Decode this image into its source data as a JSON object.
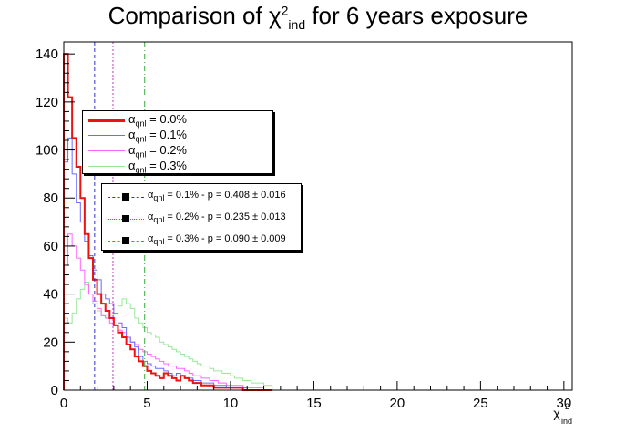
{
  "title": {
    "prefix": "Comparison of ",
    "sym": "χ",
    "sup": "2",
    "sub": "ind",
    "suffix": " for 6 years exposure"
  },
  "legend1": [
    {
      "sym": "α",
      "sub": "qnl",
      "text": " = 0.0%",
      "color": "#ee1111"
    },
    {
      "sym": "α",
      "sub": "qnl",
      "text": " = 0.1%",
      "color": "#6b6bff"
    },
    {
      "sym": "α",
      "sub": "qnl",
      "text": " = 0.2%",
      "color": "#ff66ff"
    },
    {
      "sym": "α",
      "sub": "qnl",
      "text": " = 0.3%",
      "color": "#99e699"
    }
  ],
  "legend2": [
    {
      "sym": "α",
      "sub": "qnl",
      "text": " = 0.1% - p = 0.408 ± 0.016",
      "color": "#3333cc"
    },
    {
      "sym": "α",
      "sub": "qnl",
      "text": " = 0.2% - p = 0.235 ± 0.013",
      "color": "#cc33cc"
    },
    {
      "sym": "α",
      "sub": "qnl",
      "text": " = 0.3% - p = 0.090 ± 0.009",
      "color": "#33aa33"
    }
  ],
  "chart_data": {
    "type": "histogram",
    "title": "Comparison of χ²ind for 6 years exposure",
    "xlabel": "χ²ind",
    "ylabel": "",
    "xlim": [
      0,
      30.5
    ],
    "ylim": [
      0,
      145
    ],
    "xticks": [
      0,
      5,
      10,
      15,
      20,
      25,
      30
    ],
    "yticks": [
      0,
      20,
      40,
      60,
      80,
      100,
      120,
      140
    ],
    "bin_width": 0.25,
    "series": [
      {
        "name": "αqnl = 0.0%",
        "color": "#ee1111",
        "values": [
          140,
          122,
          105,
          93,
          80,
          65,
          55,
          46,
          40,
          36,
          33,
          30,
          27,
          24,
          22,
          19,
          17,
          14,
          12,
          10,
          8,
          7,
          6,
          5,
          7,
          6,
          5,
          4,
          6,
          5,
          4,
          3,
          3,
          2,
          2,
          2,
          1,
          1,
          1,
          1,
          1,
          1,
          1,
          0,
          0,
          0,
          0,
          0,
          0,
          0
        ]
      },
      {
        "name": "αqnl = 0.1%",
        "color": "#6b6bff",
        "values": [
          95,
          105,
          90,
          78,
          70,
          62,
          56,
          50,
          46,
          40,
          38,
          36,
          32,
          28,
          26,
          22,
          20,
          18,
          14,
          12,
          11,
          10,
          9,
          9,
          8,
          7,
          6,
          7,
          6,
          5,
          5,
          4,
          4,
          3,
          3,
          3,
          2,
          2,
          2,
          1,
          1,
          1,
          1,
          1,
          0,
          0,
          0,
          0,
          0,
          0
        ]
      },
      {
        "name": "αqnl = 0.2%",
        "color": "#ff66ff",
        "values": [
          52,
          65,
          60,
          55,
          50,
          44,
          40,
          37,
          34,
          31,
          30,
          28,
          27,
          25,
          24,
          22,
          20,
          19,
          17,
          16,
          15,
          14,
          13,
          12,
          11,
          10,
          10,
          9,
          9,
          8,
          7,
          6,
          6,
          5,
          5,
          4,
          4,
          3,
          3,
          2,
          2,
          2,
          2,
          1,
          1,
          1,
          1,
          1,
          0,
          0
        ]
      },
      {
        "name": "αqnl = 0.3%",
        "color": "#99e699",
        "values": [
          30,
          28,
          32,
          38,
          42,
          45,
          40,
          36,
          33,
          31,
          30,
          30,
          32,
          35,
          38,
          36,
          34,
          30,
          28,
          26,
          24,
          23,
          22,
          20,
          19,
          18,
          17,
          16,
          15,
          14,
          13,
          12,
          11,
          10,
          10,
          9,
          8,
          8,
          7,
          7,
          6,
          5,
          5,
          4,
          4,
          3,
          3,
          3,
          2,
          2
        ]
      }
    ],
    "vlines": [
      {
        "x": 1.85,
        "color": "#3333cc",
        "style": "dashed"
      },
      {
        "x": 2.95,
        "color": "#cc33cc",
        "style": "dotted"
      },
      {
        "x": 4.85,
        "color": "#33aa33",
        "style": "dashdot"
      }
    ],
    "grid": false,
    "legend": "upper-left"
  }
}
